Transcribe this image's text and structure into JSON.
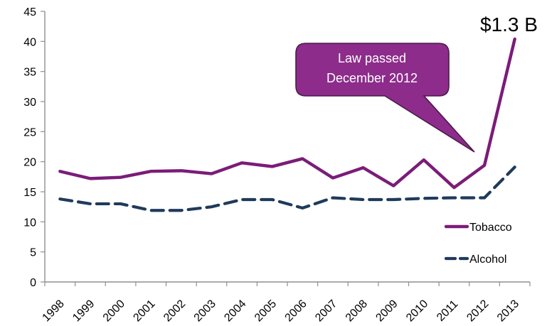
{
  "chart_data": {
    "type": "line",
    "categories": [
      "1998",
      "1999",
      "2000",
      "2001",
      "2002",
      "2003",
      "2004",
      "2005",
      "2006",
      "2007",
      "2008",
      "2009",
      "2010",
      "2011",
      "2012",
      "2013"
    ],
    "ylim": [
      0,
      45
    ],
    "yticks": [
      0,
      5,
      10,
      15,
      20,
      25,
      30,
      35,
      40,
      45
    ],
    "grid": false,
    "legend_position": "right",
    "series": [
      {
        "name": "Tobacco",
        "values": [
          18.4,
          17.2,
          17.4,
          18.4,
          18.5,
          18.0,
          19.8,
          19.2,
          20.5,
          17.3,
          19.0,
          16.0,
          20.3,
          15.7,
          19.4,
          40.4
        ],
        "color": "#7b1c78",
        "style": "solid"
      },
      {
        "name": "Alcohol",
        "values": [
          13.8,
          13.0,
          13.0,
          11.9,
          11.9,
          12.5,
          13.7,
          13.7,
          12.3,
          14.0,
          13.7,
          13.7,
          13.9,
          14.0,
          14.0,
          19.1
        ],
        "color": "#1f3b5a",
        "style": "dashed"
      }
    ],
    "annotation": {
      "lines": [
        "Law passed",
        "December 2012"
      ],
      "fill": "#8d2c8b",
      "stroke": "#4b1b4a"
    },
    "value_callout": "$1.3 B"
  }
}
